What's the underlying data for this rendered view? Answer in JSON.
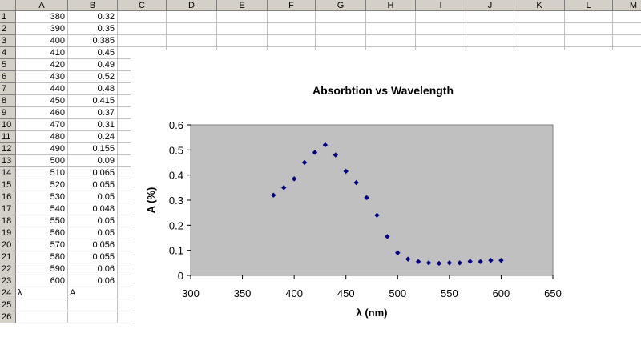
{
  "columns": [
    "A",
    "B",
    "C",
    "D",
    "E",
    "F",
    "G",
    "H",
    "I",
    "J",
    "K",
    "L",
    "M"
  ],
  "rows": [
    "1",
    "2",
    "3",
    "4",
    "5",
    "6",
    "7",
    "8",
    "9",
    "10",
    "11",
    "12",
    "13",
    "14",
    "15",
    "16",
    "17",
    "18",
    "19",
    "20",
    "21",
    "22",
    "23",
    "24",
    "25",
    "26"
  ],
  "cells": {
    "A": [
      "380",
      "390",
      "400",
      "410",
      "420",
      "430",
      "440",
      "450",
      "460",
      "470",
      "480",
      "490",
      "500",
      "510",
      "520",
      "530",
      "540",
      "550",
      "560",
      "570",
      "580",
      "590",
      "600",
      "λ",
      "",
      ""
    ],
    "B": [
      "0.32",
      "0.35",
      "0.385",
      "0.45",
      "0.49",
      "0.52",
      "0.48",
      "0.415",
      "0.37",
      "0.31",
      "0.24",
      "0.155",
      "0.09",
      "0.065",
      "0.055",
      "0.05",
      "0.048",
      "0.05",
      "0.05",
      "0.056",
      "0.055",
      "0.06",
      "0.06",
      "A",
      "",
      ""
    ]
  },
  "chart_data": {
    "type": "scatter",
    "title": "Absorbtion vs Wavelength",
    "xlabel": "λ (nm)",
    "ylabel": "A (%)",
    "xlim": [
      300,
      650
    ],
    "ylim": [
      0,
      0.6
    ],
    "xticks": [
      "300",
      "350",
      "400",
      "450",
      "500",
      "550",
      "600",
      "650"
    ],
    "yticks": [
      "0",
      "0.1",
      "0.2",
      "0.3",
      "0.4",
      "0.5",
      "0.6"
    ],
    "x": [
      380,
      390,
      400,
      410,
      420,
      430,
      440,
      450,
      460,
      470,
      480,
      490,
      500,
      510,
      520,
      530,
      540,
      550,
      560,
      570,
      580,
      590,
      600
    ],
    "y": [
      0.32,
      0.35,
      0.385,
      0.45,
      0.49,
      0.52,
      0.48,
      0.415,
      0.37,
      0.31,
      0.24,
      0.155,
      0.09,
      0.065,
      0.055,
      0.05,
      0.048,
      0.05,
      0.05,
      0.056,
      0.055,
      0.06,
      0.06
    ],
    "plot_background": "#c0c0c0",
    "marker_color": "#000080",
    "grid": false,
    "legend": false
  }
}
